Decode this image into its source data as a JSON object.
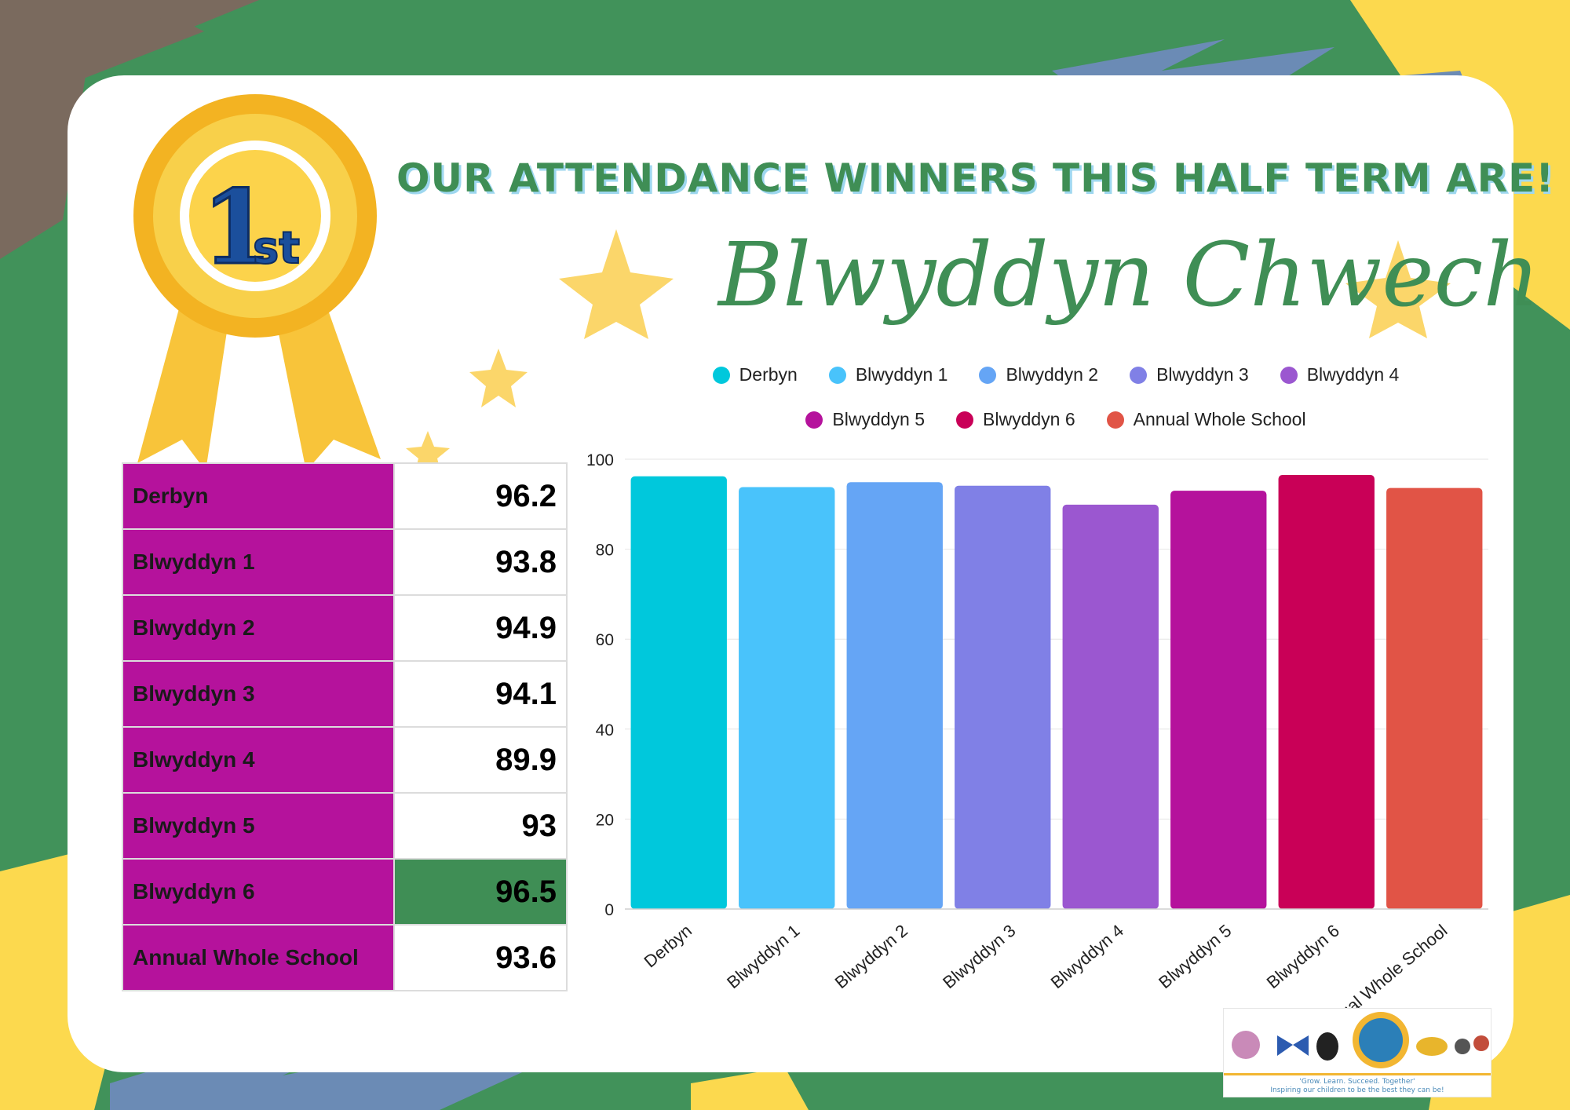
{
  "headline": "OUR ATTENDANCE WINNERS THIS HALF TERM ARE!",
  "winner": "Blwyddyn Chwech",
  "rosette": {
    "main": "1",
    "suffix": "st"
  },
  "colors": {
    "green": "#41925a",
    "label_cell": "#b5129c",
    "winner_cell": "#3f8e55",
    "yellow": "#fcd94e",
    "blue_brush": "#6b8bb5"
  },
  "table": [
    {
      "label": "Derbyn",
      "value": "96.2"
    },
    {
      "label": "Blwyddyn 1",
      "value": "93.8"
    },
    {
      "label": "Blwyddyn 2",
      "value": "94.9"
    },
    {
      "label": "Blwyddyn 3",
      "value": "94.1"
    },
    {
      "label": "Blwyddyn 4",
      "value": "89.9"
    },
    {
      "label": "Blwyddyn 5",
      "value": "93"
    },
    {
      "label": "Blwyddyn 6",
      "value": "96.5"
    },
    {
      "label": "Annual Whole School",
      "value": "93.6"
    }
  ],
  "chart_data": {
    "type": "bar",
    "categories": [
      "Derbyn",
      "Blwyddyn 1",
      "Blwyddyn 2",
      "Blwyddyn 3",
      "Blwyddyn 4",
      "Blwyddyn 5",
      "Blwyddyn 6",
      "Annual Whole School"
    ],
    "values": [
      96.2,
      93.8,
      94.9,
      94.1,
      89.9,
      93,
      96.5,
      93.6
    ],
    "colors": [
      "#00c8dc",
      "#49c3fb",
      "#65a5f5",
      "#8080e6",
      "#9b57d0",
      "#b5129c",
      "#c90057",
      "#e15446"
    ],
    "ylim": [
      0,
      100
    ],
    "yticks": [
      0,
      20,
      40,
      60,
      80,
      100
    ],
    "legend": [
      "Derbyn",
      "Blwyddyn 1",
      "Blwyddyn 2",
      "Blwyddyn 3",
      "Blwyddyn 4",
      "Blwyddyn 5",
      "Blwyddyn 6",
      "Annual Whole School"
    ],
    "legend_position": "top",
    "grid": true,
    "title": "",
    "xlabel": "",
    "ylabel": ""
  },
  "logo": {
    "tagline_1": "'Grow. Learn. Succeed. Together'",
    "tagline_2": "Inspiring our children to be the best they can be!"
  }
}
